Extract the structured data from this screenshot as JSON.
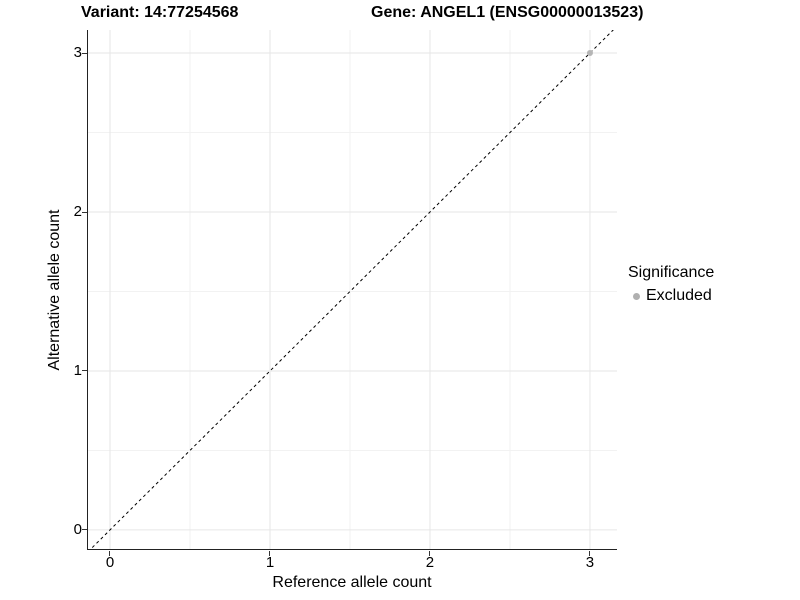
{
  "chart_data": {
    "type": "scatter",
    "title_left": "Variant: 14:77254568",
    "title_right": "Gene: ANGEL1 (ENSG00000013523)",
    "xlabel": "Reference allele count",
    "ylabel": "Alternative allele count",
    "x_ticks": [
      0,
      1,
      2,
      3
    ],
    "y_ticks": [
      0,
      1,
      2,
      3
    ],
    "x_minor": [
      0.5,
      1.5,
      2.5
    ],
    "y_minor": [
      0.5,
      1.5,
      2.5
    ],
    "xlim": [
      -0.1375,
      3.169
    ],
    "ylim": [
      -0.12,
      3.145
    ],
    "grid": {
      "major_color": "#e6e6e6",
      "minor_color": "#f2f2f2",
      "major_width": 1,
      "minor_width": 1
    },
    "identity_line": {
      "slope": 1,
      "intercept": 0,
      "style": "dashed",
      "color": "#000000",
      "dash": "3,3"
    },
    "series": [
      {
        "name": "Excluded",
        "color": "#b5b5b5",
        "point_radius": 3,
        "points": [
          [
            3,
            3
          ]
        ]
      }
    ],
    "legend": {
      "title": "Significance",
      "position": "right",
      "items": [
        {
          "label": "Excluded",
          "color": "#b0b0b0"
        }
      ]
    },
    "axis_color": "#222222",
    "tick_color": "#333333",
    "background": "#ffffff"
  }
}
